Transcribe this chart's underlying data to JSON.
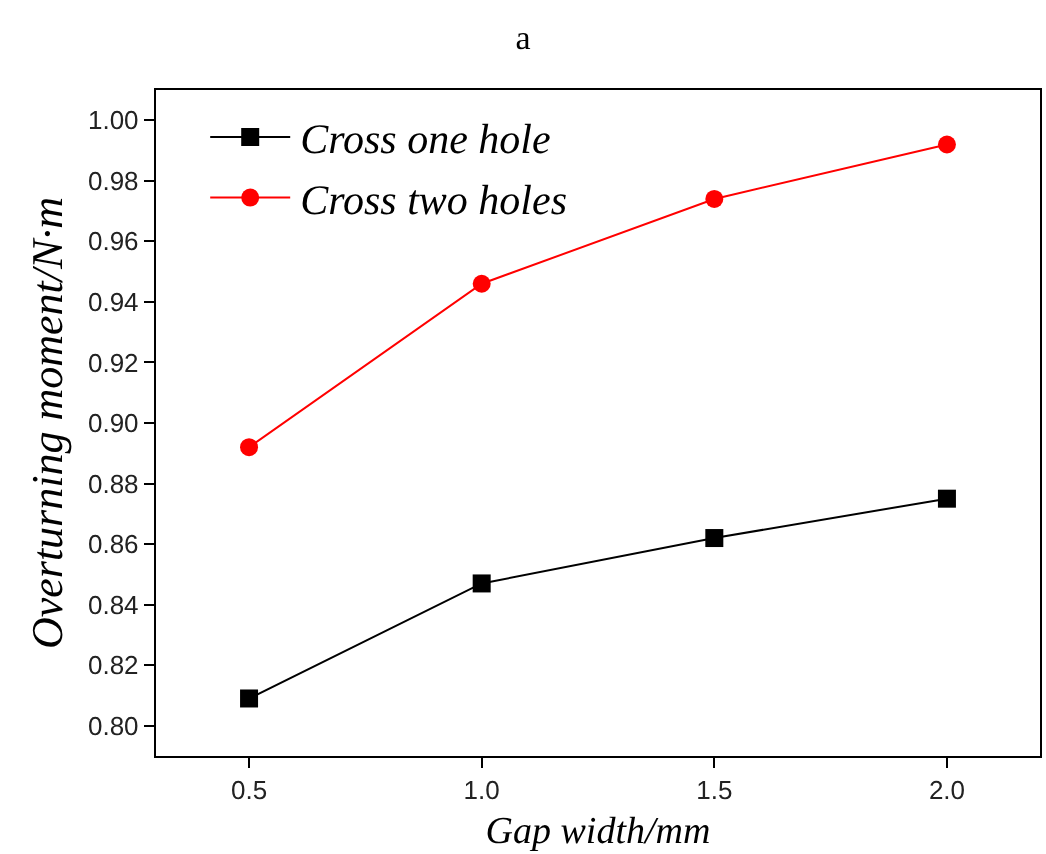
{
  "chart_data": {
    "type": "line",
    "title": "a",
    "xlabel": "Gap width/mm",
    "ylabel": "Overturning moment/N·m",
    "x": [
      0.5,
      1.0,
      1.5,
      2.0
    ],
    "series": [
      {
        "name": "Cross one hole",
        "color": "#000000",
        "marker": "square",
        "values": [
          0.809,
          0.847,
          0.862,
          0.875
        ]
      },
      {
        "name": "Cross two holes",
        "color": "#ff0000",
        "marker": "circle",
        "values": [
          0.892,
          0.946,
          0.974,
          0.992
        ]
      }
    ],
    "xlim": [
      0.3,
      2.2
    ],
    "xticks": [
      {
        "value": 0.5,
        "label": "0.5"
      },
      {
        "value": 1.0,
        "label": "1.0"
      },
      {
        "value": 1.5,
        "label": "1.5"
      },
      {
        "value": 2.0,
        "label": "2.0"
      }
    ],
    "ylim": [
      0.79,
      1.01
    ],
    "yticks": [
      {
        "value": 0.8,
        "label": "0.80"
      },
      {
        "value": 0.82,
        "label": "0.82"
      },
      {
        "value": 0.84,
        "label": "0.84"
      },
      {
        "value": 0.86,
        "label": "0.86"
      },
      {
        "value": 0.88,
        "label": "0.88"
      },
      {
        "value": 0.9,
        "label": "0.90"
      },
      {
        "value": 0.92,
        "label": "0.92"
      },
      {
        "value": 0.94,
        "label": "0.94"
      },
      {
        "value": 0.96,
        "label": "0.96"
      },
      {
        "value": 0.98,
        "label": "0.98"
      },
      {
        "value": 1.0,
        "label": "1.00"
      }
    ],
    "legend": "top left",
    "line_style": "solid"
  }
}
